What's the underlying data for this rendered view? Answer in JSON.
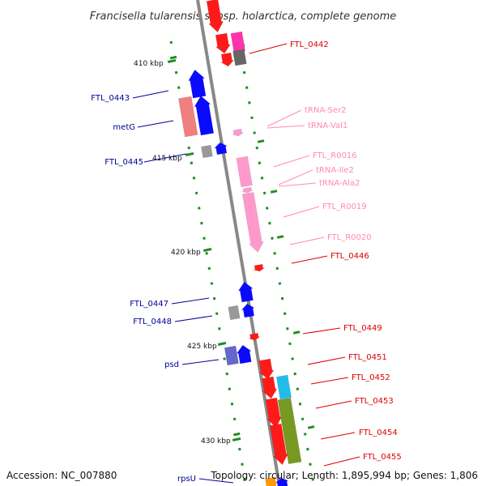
{
  "title": "Francisella tularensis subsp. holarctica, complete genome",
  "accession_text": "Accession: NC_007880",
  "summary_text": "Topology: circular; Length: 1,895,994 bp; Genes: 1,806",
  "colors": {
    "red": "#ff1a1a",
    "pink_rna": "#ff99cc",
    "magenta": "#ff33aa",
    "blue": "#0a0aff",
    "salmon": "#f08080",
    "gray": "#999999",
    "dark_gray": "#666666",
    "cyan": "#22bbee",
    "olive": "#779922",
    "slate_blue": "#6666cc",
    "orange": "#ff9900",
    "backbone": "#888888",
    "tick": "#228b22",
    "label_red": "#dd0000",
    "label_pink": "#ff88bb",
    "label_blue": "#000099"
  },
  "scale_labels": [
    "410 kbp",
    "415 kbp",
    "420 kbp",
    "425 kbp",
    "430 kbp"
  ],
  "labels_right": [
    {
      "text": "FTL_0442",
      "kind": "red"
    },
    {
      "text": "tRNA-Ser2",
      "kind": "pink"
    },
    {
      "text": "tRNA-Val1",
      "kind": "pink"
    },
    {
      "text": "FTL_R0016",
      "kind": "pink"
    },
    {
      "text": "tRNA-Ile2",
      "kind": "pink"
    },
    {
      "text": "tRNA-Ala2",
      "kind": "pink"
    },
    {
      "text": "FTL_R0019",
      "kind": "pink"
    },
    {
      "text": "FTL_R0020",
      "kind": "pink"
    },
    {
      "text": "FTL_0446",
      "kind": "red"
    },
    {
      "text": "FTL_0449",
      "kind": "red"
    },
    {
      "text": "FTL_0451",
      "kind": "red"
    },
    {
      "text": "FTL_0452",
      "kind": "red"
    },
    {
      "text": "FTL_0453",
      "kind": "red"
    },
    {
      "text": "FTL_0454",
      "kind": "red"
    },
    {
      "text": "FTL_0455",
      "kind": "red"
    }
  ],
  "labels_left": [
    {
      "text": "FTL_0443",
      "kind": "blue"
    },
    {
      "text": "metG",
      "kind": "blue"
    },
    {
      "text": "FTL_0445",
      "kind": "blue"
    },
    {
      "text": "FTL_0447",
      "kind": "blue"
    },
    {
      "text": "FTL_0448",
      "kind": "blue"
    },
    {
      "text": "psd",
      "kind": "blue"
    },
    {
      "text": "rpsU",
      "kind": "blue"
    }
  ]
}
